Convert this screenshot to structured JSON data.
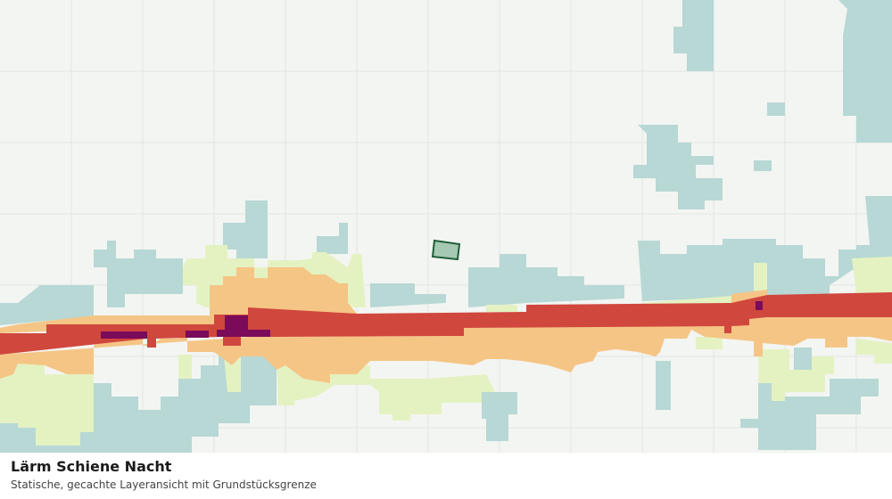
{
  "caption": {
    "title": "Lärm Schiene Nacht",
    "subtitle": "Statische, gecachte Layeransicht mit Grundstücksgrenze"
  }
}
